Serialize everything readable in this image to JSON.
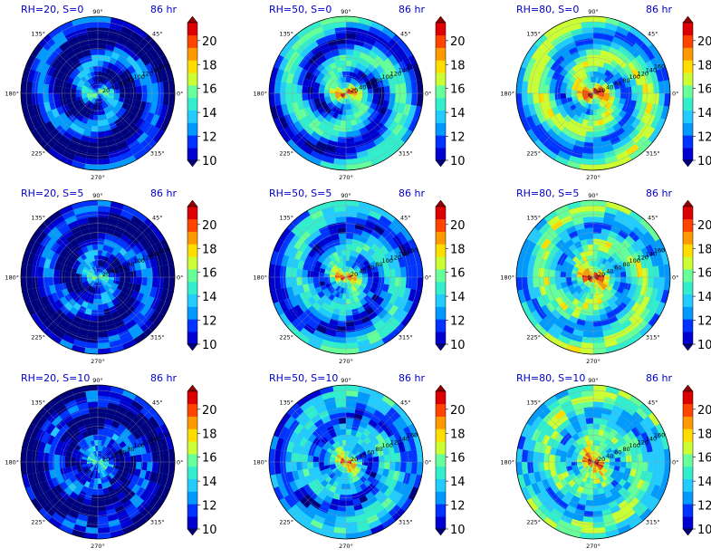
{
  "colors": {
    "title": "#0000cc",
    "colormap": [
      "#00007f",
      "#0000d0",
      "#0033ff",
      "#0099ff",
      "#22ccff",
      "#33eecc",
      "#66ff99",
      "#ccff33",
      "#ffdd00",
      "#ff9900",
      "#ff4400",
      "#dd0000",
      "#8f0000"
    ]
  },
  "chart_data": {
    "type": "heatmap",
    "projection": "polar",
    "time_label": "86 hr",
    "angle_ticks": [
      "90°",
      "45°",
      "0°",
      "315°",
      "270°",
      "225°",
      "180°",
      "135°"
    ],
    "radius_ticks": [
      "20",
      "40",
      "60",
      "80",
      "100",
      "120",
      "140",
      "160"
    ],
    "colorbar": {
      "ticks": [
        "10",
        "12",
        "14",
        "16",
        "18",
        "20"
      ],
      "range": [
        10,
        21.5
      ],
      "levels": 13
    },
    "panels": [
      {
        "title": "RH=20, S=0",
        "time": "86 hr",
        "rh": 20,
        "s": 0
      },
      {
        "title": "RH=50, S=0",
        "time": "86 hr",
        "rh": 50,
        "s": 0
      },
      {
        "title": "RH=80, S=0",
        "time": "86 hr",
        "rh": 80,
        "s": 0
      },
      {
        "title": "RH=20, S=5",
        "time": "86 hr",
        "rh": 20,
        "s": 5
      },
      {
        "title": "RH=50, S=5",
        "time": "86 hr",
        "rh": 50,
        "s": 5
      },
      {
        "title": "RH=80, S=5",
        "time": "86 hr",
        "rh": 80,
        "s": 5
      },
      {
        "title": "RH=20, S=10",
        "time": "86 hr",
        "rh": 20,
        "s": 10
      },
      {
        "title": "RH=50, S=10",
        "time": "86 hr",
        "rh": 50,
        "s": 10
      },
      {
        "title": "RH=80, S=10",
        "time": "86 hr",
        "rh": 80,
        "s": 10
      }
    ]
  }
}
